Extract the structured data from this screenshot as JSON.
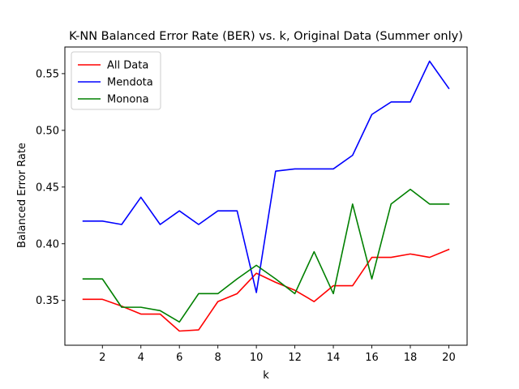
{
  "chart_data": {
    "type": "line",
    "title": "K-NN Balanced Error Rate (BER) vs. k, Original Data (Summer only)",
    "xlabel": "k",
    "ylabel": "Balanced Error Rate",
    "x": [
      1,
      2,
      3,
      4,
      5,
      6,
      7,
      8,
      9,
      10,
      11,
      12,
      13,
      14,
      15,
      16,
      17,
      18,
      19,
      20
    ],
    "xlim": [
      0.05,
      20.95
    ],
    "ylim": [
      0.3105,
      0.5735
    ],
    "xticks": [
      2,
      4,
      6,
      8,
      10,
      12,
      14,
      16,
      18,
      20
    ],
    "yticks": [
      0.35,
      0.4,
      0.45,
      0.5,
      0.55
    ],
    "ytick_labels": [
      "0.35",
      "0.40",
      "0.45",
      "0.50",
      "0.55"
    ],
    "grid": false,
    "legend_position": "top-left",
    "series": [
      {
        "name": "All Data",
        "color": "#ff0000",
        "values": [
          0.351,
          0.351,
          0.345,
          0.338,
          0.338,
          0.323,
          0.324,
          0.349,
          0.356,
          0.374,
          0.366,
          0.359,
          0.349,
          0.363,
          0.363,
          0.388,
          0.388,
          0.391,
          0.388,
          0.395
        ]
      },
      {
        "name": "Mendota",
        "color": "#0000ff",
        "values": [
          0.42,
          0.42,
          0.417,
          0.441,
          0.417,
          0.429,
          0.417,
          0.429,
          0.429,
          0.357,
          0.464,
          0.466,
          0.466,
          0.466,
          0.478,
          0.514,
          0.525,
          0.525,
          0.561,
          0.537
        ]
      },
      {
        "name": "Monona",
        "color": "#008000",
        "values": [
          0.369,
          0.369,
          0.344,
          0.344,
          0.341,
          0.331,
          0.356,
          0.356,
          0.369,
          0.381,
          0.369,
          0.356,
          0.393,
          0.356,
          0.435,
          0.369,
          0.435,
          0.448,
          0.435,
          0.435
        ]
      }
    ]
  }
}
